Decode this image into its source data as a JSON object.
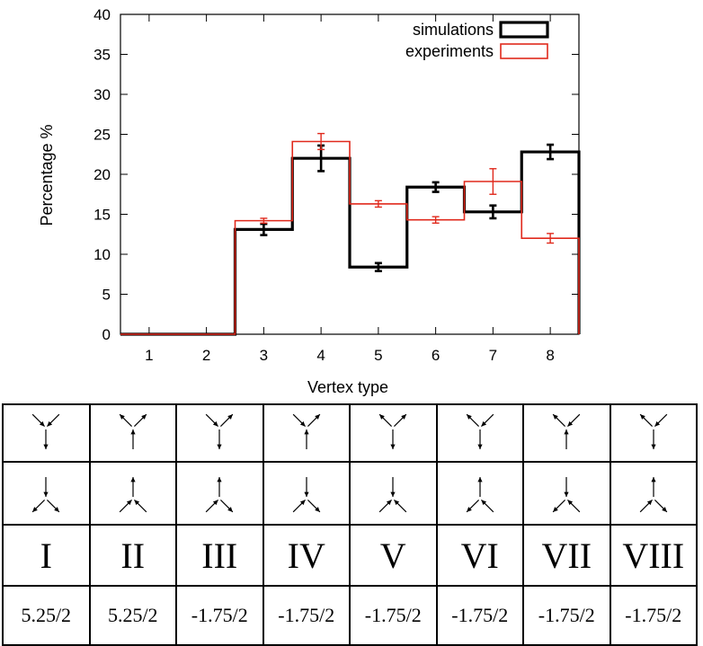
{
  "chart_data": {
    "type": "bar",
    "categories": [
      "1",
      "2",
      "3",
      "4",
      "5",
      "6",
      "7",
      "8"
    ],
    "xlabel": "Vertex type",
    "ylabel": "Percentage %",
    "ylim": [
      0,
      40
    ],
    "yticks": [
      0,
      5,
      10,
      15,
      20,
      25,
      30,
      35,
      40
    ],
    "grid": false,
    "legend_position": "top-right",
    "series": [
      {
        "name": "simulations",
        "color": "#000000",
        "values": [
          0,
          0,
          13.1,
          22.0,
          8.4,
          18.4,
          15.3,
          22.8
        ],
        "errors": [
          0,
          0,
          0.7,
          1.6,
          0.5,
          0.6,
          0.8,
          0.9
        ]
      },
      {
        "name": "experiments",
        "color": "#e0291c",
        "values": [
          0,
          0,
          14.2,
          24.1,
          16.3,
          14.3,
          19.1,
          12.0
        ],
        "errors": [
          0,
          0,
          0.3,
          1.0,
          0.4,
          0.4,
          1.6,
          0.6
        ]
      }
    ]
  },
  "vertex_table": {
    "columns": [
      {
        "roman": "I",
        "energy": "5.25/2",
        "top": [
          "in",
          "in",
          "out"
        ],
        "bottom": [
          "out",
          "out",
          "in"
        ]
      },
      {
        "roman": "II",
        "energy": "5.25/2",
        "top": [
          "out",
          "out",
          "in"
        ],
        "bottom": [
          "in",
          "in",
          "out"
        ]
      },
      {
        "roman": "III",
        "energy": "-1.75/2",
        "top": [
          "in",
          "out",
          "out"
        ],
        "bottom": [
          "in",
          "out",
          "out"
        ]
      },
      {
        "roman": "IV",
        "energy": "-1.75/2",
        "top": [
          "in",
          "out",
          "in"
        ],
        "bottom": [
          "in",
          "out",
          "in"
        ]
      },
      {
        "roman": "V",
        "energy": "-1.75/2",
        "top": [
          "out",
          "out",
          "out"
        ],
        "bottom": [
          "in",
          "in",
          "in"
        ]
      },
      {
        "roman": "VI",
        "energy": "-1.75/2",
        "top": [
          "out",
          "in",
          "out"
        ],
        "bottom": [
          "out",
          "in",
          "out"
        ]
      },
      {
        "roman": "VII",
        "energy": "-1.75/2",
        "top": [
          "out",
          "in",
          "in"
        ],
        "bottom": [
          "out",
          "in",
          "in"
        ]
      },
      {
        "roman": "VIII",
        "energy": "-1.75/2",
        "top": [
          "out",
          "in",
          "out"
        ],
        "bottom": [
          "in",
          "out",
          "out"
        ]
      }
    ]
  }
}
